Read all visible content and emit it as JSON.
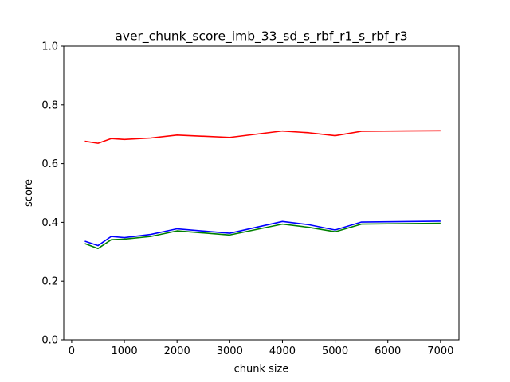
{
  "chart_data": {
    "type": "line",
    "title": "aver_chunk_score_imb_33_sd_s_rbf_r1_s_rbf_r3",
    "xlabel": "chunk size",
    "ylabel": "score",
    "xlim": [
      -150,
      7350
    ],
    "ylim": [
      0.0,
      1.0
    ],
    "xticks": [
      0,
      1000,
      2000,
      3000,
      4000,
      5000,
      6000,
      7000
    ],
    "yticks": [
      0.0,
      0.2,
      0.4,
      0.6,
      0.8,
      1.0
    ],
    "xtick_labels": [
      "0",
      "1000",
      "2000",
      "3000",
      "4000",
      "5000",
      "6000",
      "7000"
    ],
    "ytick_labels": [
      "0.0",
      "0.2",
      "0.4",
      "0.6",
      "0.8",
      "1.0"
    ],
    "grid": false,
    "x": [
      250,
      500,
      750,
      1000,
      1500,
      2000,
      3000,
      4000,
      4500,
      5000,
      5500,
      7000
    ],
    "series": [
      {
        "color": "#ff0000",
        "values": [
          0.676,
          0.669,
          0.685,
          0.682,
          0.687,
          0.697,
          0.689,
          0.711,
          0.705,
          0.695,
          0.71,
          0.712
        ]
      },
      {
        "color": "#0000ff",
        "values": [
          0.336,
          0.321,
          0.352,
          0.348,
          0.359,
          0.378,
          0.363,
          0.403,
          0.392,
          0.374,
          0.401,
          0.404
        ]
      },
      {
        "color": "#008000",
        "values": [
          0.328,
          0.311,
          0.341,
          0.343,
          0.352,
          0.371,
          0.357,
          0.394,
          0.383,
          0.368,
          0.394,
          0.397
        ]
      }
    ]
  }
}
